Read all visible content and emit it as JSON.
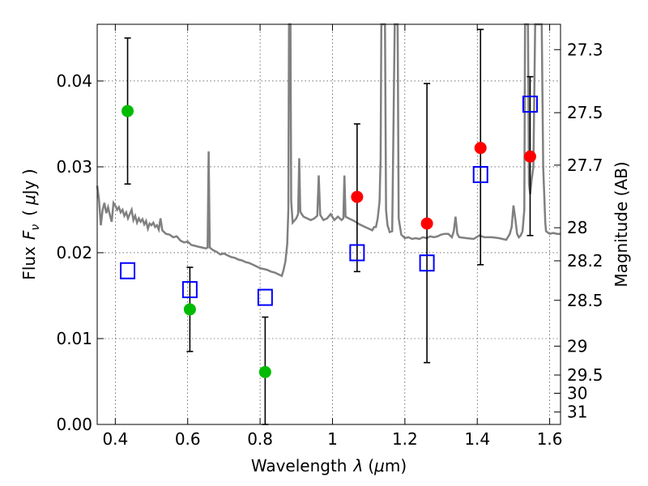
{
  "chart_data": {
    "type": "scatter",
    "xlabel_prefix": "Wavelength",
    "xlabel_symbol": "λ",
    "xlabel_unit_open": "(",
    "xlabel_unit_mu": "μ",
    "xlabel_unit_rest": "m)",
    "ylabel_prefix": "Flux",
    "ylabel_symbol": "F",
    "ylabel_subscript": "ν",
    "ylabel_unit_open": "(",
    "ylabel_unit_mu": "μ",
    "ylabel_unit_rest": "Jy )",
    "y2label": "Magnitude (AB)",
    "xlim": [
      0.35,
      1.63
    ],
    "ylim": [
      0.0,
      0.0466
    ],
    "grid": true,
    "x_ticks": [
      {
        "value": 0.4,
        "label": "0.4"
      },
      {
        "value": 0.6,
        "label": "0.6"
      },
      {
        "value": 0.8,
        "label": "0.8"
      },
      {
        "value": 1.0,
        "label": "1"
      },
      {
        "value": 1.2,
        "label": "1.2"
      },
      {
        "value": 1.4,
        "label": "1.4"
      },
      {
        "value": 1.6,
        "label": "1.6"
      }
    ],
    "y_ticks": [
      {
        "value": 0.0,
        "label": "0.00"
      },
      {
        "value": 0.01,
        "label": "0.01"
      },
      {
        "value": 0.02,
        "label": "0.02"
      },
      {
        "value": 0.03,
        "label": "0.03"
      },
      {
        "value": 0.04,
        "label": "0.04"
      }
    ],
    "y2_ticks": [
      {
        "value": 27.3,
        "label": "27.3"
      },
      {
        "value": 27.5,
        "label": "27.5"
      },
      {
        "value": 27.7,
        "label": "27.7"
      },
      {
        "value": 28.0,
        "label": "28"
      },
      {
        "value": 28.2,
        "label": "28.2"
      },
      {
        "value": 28.5,
        "label": "28.5"
      },
      {
        "value": 29.0,
        "label": "29"
      },
      {
        "value": 29.5,
        "label": "29.5"
      },
      {
        "value": 30.0,
        "label": "30"
      },
      {
        "value": 31.0,
        "label": "31"
      }
    ],
    "spectrum": {
      "color": "#808080",
      "points": [
        [
          0.35,
          0.0278
        ],
        [
          0.355,
          0.0262
        ],
        [
          0.36,
          0.0232
        ],
        [
          0.365,
          0.025
        ],
        [
          0.37,
          0.0258
        ],
        [
          0.375,
          0.0246
        ],
        [
          0.38,
          0.0253
        ],
        [
          0.385,
          0.0244
        ],
        [
          0.39,
          0.0236
        ],
        [
          0.395,
          0.0258
        ],
        [
          0.4,
          0.0255
        ],
        [
          0.405,
          0.025
        ],
        [
          0.41,
          0.0253
        ],
        [
          0.415,
          0.0247
        ],
        [
          0.42,
          0.025
        ],
        [
          0.425,
          0.0243
        ],
        [
          0.43,
          0.0247
        ],
        [
          0.435,
          0.024
        ],
        [
          0.44,
          0.0245
        ],
        [
          0.445,
          0.025
        ],
        [
          0.45,
          0.0238
        ],
        [
          0.455,
          0.0243
        ],
        [
          0.46,
          0.0235
        ],
        [
          0.465,
          0.024
        ],
        [
          0.47,
          0.0236
        ],
        [
          0.475,
          0.0239
        ],
        [
          0.48,
          0.0233
        ],
        [
          0.485,
          0.0237
        ],
        [
          0.49,
          0.0228
        ],
        [
          0.495,
          0.0234
        ],
        [
          0.5,
          0.0232
        ],
        [
          0.505,
          0.0235
        ],
        [
          0.51,
          0.023
        ],
        [
          0.515,
          0.0232
        ],
        [
          0.52,
          0.0227
        ],
        [
          0.525,
          0.024
        ],
        [
          0.53,
          0.0226
        ],
        [
          0.54,
          0.0222
        ],
        [
          0.55,
          0.0221
        ],
        [
          0.56,
          0.0218
        ],
        [
          0.57,
          0.0219
        ],
        [
          0.58,
          0.0214
        ],
        [
          0.59,
          0.0212
        ],
        [
          0.6,
          0.0213
        ],
        [
          0.61,
          0.0209
        ],
        [
          0.62,
          0.0208
        ],
        [
          0.63,
          0.0207
        ],
        [
          0.64,
          0.0206
        ],
        [
          0.65,
          0.0205
        ],
        [
          0.655,
          0.0206
        ],
        [
          0.658,
          0.0318
        ],
        [
          0.661,
          0.0206
        ],
        [
          0.67,
          0.0203
        ],
        [
          0.68,
          0.0201
        ],
        [
          0.69,
          0.0198
        ],
        [
          0.7,
          0.0199
        ],
        [
          0.71,
          0.0197
        ],
        [
          0.72,
          0.0195
        ],
        [
          0.73,
          0.0194
        ],
        [
          0.74,
          0.0192
        ],
        [
          0.75,
          0.0191
        ],
        [
          0.76,
          0.0189
        ],
        [
          0.77,
          0.0188
        ],
        [
          0.78,
          0.0186
        ],
        [
          0.79,
          0.0184
        ],
        [
          0.8,
          0.0182
        ],
        [
          0.81,
          0.0181
        ],
        [
          0.82,
          0.018
        ],
        [
          0.83,
          0.0178
        ],
        [
          0.84,
          0.0177
        ],
        [
          0.85,
          0.0175
        ],
        [
          0.86,
          0.0173
        ],
        [
          0.865,
          0.018
        ],
        [
          0.87,
          0.019
        ],
        [
          0.875,
          0.021
        ],
        [
          0.878,
          0.025
        ],
        [
          0.88,
          0.0466
        ],
        [
          0.884,
          0.0466
        ],
        [
          0.886,
          0.026
        ],
        [
          0.89,
          0.0235
        ],
        [
          0.9,
          0.024
        ],
        [
          0.905,
          0.0245
        ],
        [
          0.908,
          0.031
        ],
        [
          0.911,
          0.0248
        ],
        [
          0.915,
          0.0245
        ],
        [
          0.92,
          0.0242
        ],
        [
          0.93,
          0.024
        ],
        [
          0.94,
          0.0238
        ],
        [
          0.95,
          0.024
        ],
        [
          0.958,
          0.0243
        ],
        [
          0.962,
          0.029
        ],
        [
          0.966,
          0.0244
        ],
        [
          0.975,
          0.0238
        ],
        [
          0.985,
          0.024
        ],
        [
          0.995,
          0.0245
        ],
        [
          1.005,
          0.0238
        ],
        [
          1.015,
          0.0242
        ],
        [
          1.025,
          0.0238
        ],
        [
          1.03,
          0.024
        ],
        [
          1.033,
          0.029
        ],
        [
          1.036,
          0.0242
        ],
        [
          1.045,
          0.024
        ],
        [
          1.06,
          0.0237
        ],
        [
          1.075,
          0.0233
        ],
        [
          1.09,
          0.023
        ],
        [
          1.1,
          0.0228
        ],
        [
          1.11,
          0.0226
        ],
        [
          1.115,
          0.023
        ],
        [
          1.12,
          0.023
        ],
        [
          1.125,
          0.024
        ],
        [
          1.13,
          0.026
        ],
        [
          1.133,
          0.031
        ],
        [
          1.135,
          0.0466
        ],
        [
          1.145,
          0.0466
        ],
        [
          1.148,
          0.025
        ],
        [
          1.152,
          0.0232
        ],
        [
          1.158,
          0.0224
        ],
        [
          1.165,
          0.0225
        ],
        [
          1.172,
          0.0466
        ],
        [
          1.18,
          0.0466
        ],
        [
          1.183,
          0.024
        ],
        [
          1.19,
          0.0221
        ],
        [
          1.2,
          0.0217
        ],
        [
          1.21,
          0.0218
        ],
        [
          1.22,
          0.0216
        ],
        [
          1.23,
          0.0217
        ],
        [
          1.24,
          0.0216
        ],
        [
          1.25,
          0.0218
        ],
        [
          1.26,
          0.0217
        ],
        [
          1.27,
          0.0219
        ],
        [
          1.28,
          0.0218
        ],
        [
          1.29,
          0.0219
        ],
        [
          1.3,
          0.0221
        ],
        [
          1.31,
          0.0222
        ],
        [
          1.32,
          0.0222
        ],
        [
          1.33,
          0.0218
        ],
        [
          1.335,
          0.0225
        ],
        [
          1.34,
          0.0242
        ],
        [
          1.345,
          0.0222
        ],
        [
          1.35,
          0.0218
        ],
        [
          1.37,
          0.0217
        ],
        [
          1.39,
          0.0216
        ],
        [
          1.405,
          0.022
        ],
        [
          1.42,
          0.0218
        ],
        [
          1.44,
          0.0218
        ],
        [
          1.46,
          0.0217
        ],
        [
          1.48,
          0.0215
        ],
        [
          1.49,
          0.0222
        ],
        [
          1.495,
          0.023
        ],
        [
          1.5,
          0.0255
        ],
        [
          1.505,
          0.024
        ],
        [
          1.51,
          0.0222
        ],
        [
          1.515,
          0.0218
        ],
        [
          1.52,
          0.022
        ],
        [
          1.525,
          0.0225
        ],
        [
          1.53,
          0.025
        ],
        [
          1.532,
          0.0466
        ],
        [
          1.54,
          0.0466
        ],
        [
          1.543,
          0.028
        ],
        [
          1.546,
          0.0268
        ],
        [
          1.55,
          0.0285
        ],
        [
          1.555,
          0.03
        ],
        [
          1.56,
          0.0466
        ],
        [
          1.568,
          0.0466
        ],
        [
          1.572,
          0.0466
        ],
        [
          1.578,
          0.0466
        ],
        [
          1.582,
          0.03
        ],
        [
          1.588,
          0.0235
        ],
        [
          1.59,
          0.0225
        ],
        [
          1.6,
          0.0222
        ],
        [
          1.61,
          0.0223
        ],
        [
          1.62,
          0.0222
        ],
        [
          1.63,
          0.0222
        ]
      ]
    },
    "series": [
      {
        "marker": "circle",
        "color": "#00bb00",
        "points": [
          {
            "x": 0.434,
            "y": 0.0365,
            "yerr_low": 0.028,
            "yerr_high": 0.045
          },
          {
            "x": 0.606,
            "y": 0.0134,
            "yerr_low": 0.0085,
            "yerr_high": 0.0183
          },
          {
            "x": 0.814,
            "y": 0.0061,
            "yerr_low": 0.0,
            "yerr_high": 0.0125
          }
        ]
      },
      {
        "marker": "circle",
        "color": "#ff0000",
        "points": [
          {
            "x": 1.068,
            "y": 0.0265,
            "yerr_low": 0.0178,
            "yerr_high": 0.035
          },
          {
            "x": 1.261,
            "y": 0.0234,
            "yerr_low": 0.0072,
            "yerr_high": 0.0397
          },
          {
            "x": 1.409,
            "y": 0.0322,
            "yerr_low": 0.0186,
            "yerr_high": 0.046
          },
          {
            "x": 1.546,
            "y": 0.0312,
            "yerr_low": 0.022,
            "yerr_high": 0.0405
          }
        ]
      },
      {
        "marker": "square",
        "color": "#0000ff",
        "points": [
          {
            "x": 0.434,
            "y": 0.0179
          },
          {
            "x": 0.606,
            "y": 0.0157
          },
          {
            "x": 0.814,
            "y": 0.0148
          },
          {
            "x": 1.068,
            "y": 0.02
          },
          {
            "x": 1.261,
            "y": 0.0188
          },
          {
            "x": 1.409,
            "y": 0.0291
          },
          {
            "x": 1.546,
            "y": 0.0373
          }
        ]
      }
    ]
  }
}
